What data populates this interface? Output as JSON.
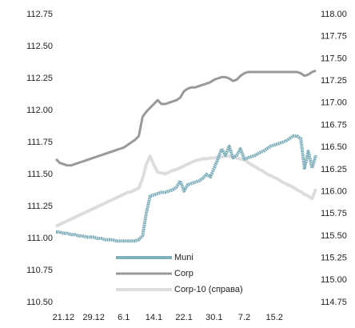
{
  "chart_data": {
    "type": "line",
    "categories": [
      null,
      null,
      "21.12",
      null,
      null,
      null,
      null,
      null,
      null,
      null,
      "29.12",
      null,
      null,
      null,
      null,
      null,
      null,
      null,
      "6.1",
      null,
      null,
      null,
      null,
      null,
      null,
      null,
      "14.1",
      null,
      null,
      null,
      null,
      null,
      null,
      null,
      "22.1",
      null,
      null,
      null,
      null,
      null,
      null,
      null,
      "30.1",
      null,
      null,
      null,
      null,
      null,
      null,
      null,
      "7.2",
      null,
      null,
      null,
      null,
      null,
      null,
      null,
      "15.2",
      null,
      null,
      null,
      null,
      null,
      null,
      null,
      null,
      null,
      null,
      null
    ],
    "ylim": [
      110.5,
      112.75
    ],
    "yticks": [
      {
        "value": 110.5,
        "label": "110.50"
      },
      110.75,
      {
        "value": 111,
        "label": "111.00"
      },
      111.25,
      {
        "value": 111.5,
        "label": "111.50"
      },
      111.75,
      {
        "value": 112,
        "label": "112.00"
      },
      112.25,
      {
        "value": 112.5,
        "label": "112.50"
      },
      112.75
    ],
    "y2lim": [
      114.75,
      118
    ],
    "y2ticks": [
      114.75,
      {
        "value": 115,
        "label": "115.00"
      },
      115.25,
      {
        "value": 115.5,
        "label": "115.50"
      },
      115.75,
      {
        "value": 116,
        "label": "116.00"
      },
      116.25,
      {
        "value": 116.5,
        "label": "116.50"
      },
      116.75,
      {
        "value": 117,
        "label": "117.00"
      },
      117.25,
      {
        "value": 117.5,
        "label": "117.50"
      },
      117.75,
      {
        "value": 118,
        "label": "118.00"
      }
    ],
    "legend": "lower center",
    "series": [
      {
        "name": "Muni",
        "color": "#7fb0bb",
        "values": [
          111.05,
          111.05,
          111.04,
          111.04,
          111.03,
          111.03,
          111.02,
          111.02,
          111.01,
          111.01,
          111.01,
          111.0,
          111.0,
          110.99,
          110.99,
          110.99,
          110.98,
          110.98,
          110.98,
          110.98,
          110.98,
          110.98,
          110.99,
          111.02,
          111.2,
          111.33,
          111.34,
          111.35,
          111.36,
          111.36,
          111.37,
          111.38,
          111.4,
          111.45,
          111.37,
          111.42,
          111.43,
          111.44,
          111.45,
          111.47,
          111.5,
          111.48,
          111.55,
          111.62,
          111.7,
          111.65,
          111.72,
          111.63,
          111.65,
          111.7,
          111.62,
          111.63,
          111.64,
          111.65,
          111.67,
          111.68,
          111.7,
          111.72,
          111.73,
          111.74,
          111.75,
          111.76,
          111.78,
          111.8,
          111.8,
          111.78,
          111.55,
          111.68,
          111.55,
          111.65
        ]
      },
      {
        "name": "Corp",
        "color": "#999999",
        "values": [
          111.62,
          111.59,
          111.58,
          111.57,
          111.57,
          111.58,
          111.59,
          111.6,
          111.61,
          111.62,
          111.63,
          111.64,
          111.65,
          111.66,
          111.67,
          111.68,
          111.69,
          111.7,
          111.71,
          111.73,
          111.75,
          111.77,
          111.8,
          111.95,
          111.99,
          112.02,
          112.05,
          112.08,
          112.05,
          112.05,
          112.06,
          112.07,
          112.08,
          112.1,
          112.15,
          112.17,
          112.18,
          112.18,
          112.19,
          112.2,
          112.21,
          112.22,
          112.24,
          112.25,
          112.26,
          112.26,
          112.25,
          112.23,
          112.24,
          112.27,
          112.29,
          112.3,
          112.3,
          112.3,
          112.3,
          112.3,
          112.3,
          112.3,
          112.3,
          112.3,
          112.3,
          112.3,
          112.3,
          112.3,
          112.3,
          112.29,
          112.27,
          112.28,
          112.3,
          112.31
        ]
      },
      {
        "name": "Corp-10 (справа)",
        "color": "#dddddd",
        "axis": "y2",
        "values": [
          115.61,
          115.63,
          115.65,
          115.67,
          115.69,
          115.71,
          115.73,
          115.75,
          115.77,
          115.79,
          115.81,
          115.83,
          115.85,
          115.87,
          115.89,
          115.91,
          115.93,
          115.95,
          115.97,
          115.99,
          116.0,
          116.02,
          116.04,
          116.15,
          116.31,
          116.4,
          116.3,
          116.22,
          116.21,
          116.2,
          116.22,
          116.24,
          116.25,
          116.27,
          116.29,
          116.31,
          116.33,
          116.35,
          116.36,
          116.37,
          116.37,
          116.38,
          116.38,
          116.39,
          116.39,
          116.4,
          116.4,
          116.39,
          116.38,
          116.37,
          116.36,
          116.33,
          116.3,
          116.28,
          116.25,
          116.23,
          116.2,
          116.18,
          116.16,
          116.14,
          116.11,
          116.09,
          116.07,
          116.05,
          116.02,
          116.0,
          115.97,
          115.95,
          115.92,
          116.03
        ]
      }
    ]
  }
}
